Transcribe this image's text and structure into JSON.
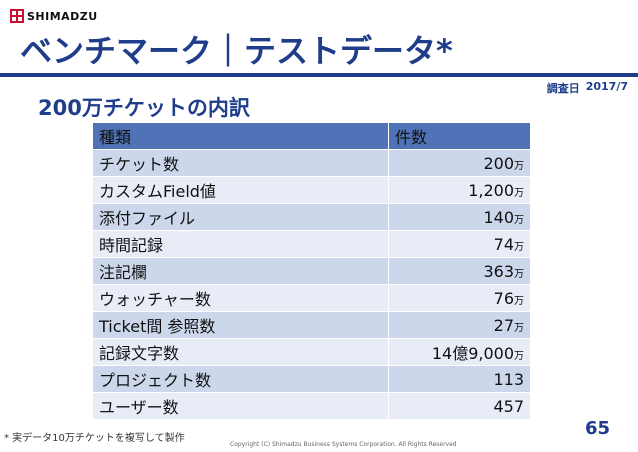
{
  "logo": {
    "text": "SHIMADZU"
  },
  "title": "ベンチマーク｜テストデータ*",
  "survey": {
    "label": "調査日",
    "date": "2017/7"
  },
  "subtitle": "200万チケットの内訳",
  "table": {
    "headers": [
      "種類",
      "件数"
    ],
    "rows": [
      {
        "label": "チケット数",
        "value": "200",
        "unit": "万"
      },
      {
        "label": "カスタムField値",
        "value": "1,200",
        "unit": "万"
      },
      {
        "label": "添付ファイル",
        "value": "140",
        "unit": "万"
      },
      {
        "label": "時間記録",
        "value": "74",
        "unit": "万"
      },
      {
        "label": "注記欄",
        "value": "363",
        "unit": "万"
      },
      {
        "label": "ウォッチャー数",
        "value": "76",
        "unit": "万"
      },
      {
        "label": "Ticket間 参照数",
        "value": "27",
        "unit": "万"
      },
      {
        "label": "記録文字数",
        "value": "14億9,000",
        "unit": "万"
      },
      {
        "label": "プロジェクト数",
        "value": "113",
        "unit": ""
      },
      {
        "label": "ユーザー数",
        "value": "457",
        "unit": ""
      }
    ]
  },
  "footnote": "* 実データ10万チケットを複写して製作",
  "copyright": "Copyright (C) Shimadzu Business Systems Corporation. All Rights Reserved",
  "page_number": "65",
  "colors": {
    "brand_red": "#c8102e",
    "title_blue": "#1f3d8a",
    "header_blue": "#4f73b6"
  }
}
